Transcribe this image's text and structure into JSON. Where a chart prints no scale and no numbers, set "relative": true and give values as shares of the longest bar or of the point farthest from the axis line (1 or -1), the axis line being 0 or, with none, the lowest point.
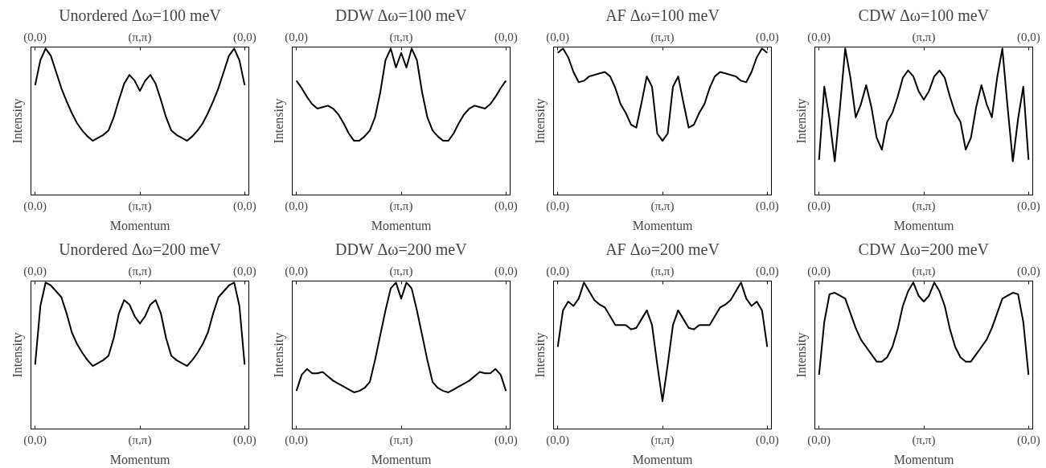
{
  "chart_data": [
    {
      "type": "line",
      "title": "Unordered Δω=100 meV",
      "xlabel": "Momentum",
      "ylabel": "Intensity",
      "relative": true,
      "grid": false,
      "marker": "none",
      "line_style": "solid",
      "categories": [
        "(0,0)",
        null,
        null,
        null,
        null,
        null,
        null,
        null,
        null,
        null,
        null,
        null,
        null,
        null,
        null,
        null,
        null,
        null,
        null,
        null,
        "(π,π)",
        null,
        null,
        null,
        null,
        null,
        null,
        null,
        null,
        null,
        null,
        null,
        null,
        null,
        null,
        null,
        null,
        null,
        null,
        null,
        "(0,0)"
      ],
      "series": [
        {
          "color": "#000000",
          "values": [
            0.75,
            0.92,
            1.0,
            0.95,
            0.84,
            0.73,
            0.64,
            0.56,
            0.49,
            0.44,
            0.4,
            0.37,
            0.39,
            0.41,
            0.44,
            0.53,
            0.65,
            0.76,
            0.82,
            0.78,
            0.71,
            0.78,
            0.82,
            0.76,
            0.65,
            0.53,
            0.44,
            0.41,
            0.39,
            0.37,
            0.4,
            0.44,
            0.49,
            0.56,
            0.64,
            0.73,
            0.84,
            0.95,
            1.0,
            0.92,
            0.75
          ]
        }
      ]
    },
    {
      "type": "line",
      "title": "DDW Δω=100 meV",
      "xlabel": "Momentum",
      "ylabel": "Intensity",
      "relative": true,
      "grid": false,
      "marker": "none",
      "line_style": "solid",
      "categories": [
        "(0,0)",
        null,
        null,
        null,
        null,
        null,
        null,
        null,
        null,
        null,
        null,
        null,
        null,
        null,
        null,
        null,
        null,
        null,
        null,
        null,
        "(π,π)",
        null,
        null,
        null,
        null,
        null,
        null,
        null,
        null,
        null,
        null,
        null,
        null,
        null,
        null,
        null,
        null,
        null,
        null,
        null,
        "(0,0)"
      ],
      "series": [
        {
          "color": "#000000",
          "values": [
            0.78,
            0.73,
            0.67,
            0.62,
            0.59,
            0.6,
            0.61,
            0.59,
            0.55,
            0.49,
            0.42,
            0.37,
            0.37,
            0.4,
            0.44,
            0.53,
            0.7,
            0.92,
            1.0,
            0.87,
            0.97,
            0.87,
            1.0,
            0.92,
            0.7,
            0.53,
            0.44,
            0.4,
            0.37,
            0.37,
            0.42,
            0.49,
            0.55,
            0.59,
            0.61,
            0.6,
            0.59,
            0.62,
            0.67,
            0.73,
            0.78
          ]
        }
      ]
    },
    {
      "type": "line",
      "title": "AF Δω=100 meV",
      "xlabel": "Momentum",
      "ylabel": "Intensity",
      "relative": true,
      "grid": false,
      "marker": "none",
      "line_style": "solid",
      "categories": [
        "(0,0)",
        null,
        null,
        null,
        null,
        null,
        null,
        null,
        null,
        null,
        null,
        null,
        null,
        null,
        null,
        null,
        null,
        null,
        null,
        null,
        "(π,π)",
        null,
        null,
        null,
        null,
        null,
        null,
        null,
        null,
        null,
        null,
        null,
        null,
        null,
        null,
        null,
        null,
        null,
        null,
        null,
        "(0,0)"
      ],
      "series": [
        {
          "color": "#000000",
          "values": [
            0.97,
            1.0,
            0.94,
            0.84,
            0.77,
            0.78,
            0.81,
            0.82,
            0.83,
            0.84,
            0.81,
            0.73,
            0.62,
            0.56,
            0.48,
            0.46,
            0.63,
            0.81,
            0.74,
            0.42,
            0.37,
            0.42,
            0.74,
            0.81,
            0.63,
            0.46,
            0.48,
            0.56,
            0.62,
            0.73,
            0.81,
            0.84,
            0.83,
            0.82,
            0.81,
            0.78,
            0.77,
            0.84,
            0.94,
            1.0,
            0.97
          ]
        }
      ]
    },
    {
      "type": "line",
      "title": "CDW Δω=100 meV",
      "xlabel": "Momentum",
      "ylabel": "Intensity",
      "relative": true,
      "grid": false,
      "marker": "none",
      "line_style": "solid",
      "categories": [
        "(0,0)",
        null,
        null,
        null,
        null,
        null,
        null,
        null,
        null,
        null,
        null,
        null,
        null,
        null,
        null,
        null,
        null,
        null,
        null,
        null,
        "(π,π)",
        null,
        null,
        null,
        null,
        null,
        null,
        null,
        null,
        null,
        null,
        null,
        null,
        null,
        null,
        null,
        null,
        null,
        null,
        null,
        "(0,0)"
      ],
      "series": [
        {
          "color": "#000000",
          "values": [
            0.24,
            0.74,
            0.52,
            0.23,
            0.6,
            1.0,
            0.8,
            0.53,
            0.62,
            0.75,
            0.6,
            0.39,
            0.31,
            0.5,
            0.56,
            0.67,
            0.8,
            0.85,
            0.81,
            0.71,
            0.65,
            0.71,
            0.81,
            0.85,
            0.8,
            0.67,
            0.56,
            0.5,
            0.31,
            0.39,
            0.6,
            0.75,
            0.62,
            0.53,
            0.8,
            1.0,
            0.6,
            0.23,
            0.52,
            0.74,
            0.24
          ]
        }
      ]
    },
    {
      "type": "line",
      "title": "Unordered Δω=200 meV",
      "xlabel": "Momentum",
      "ylabel": "Intensity",
      "relative": true,
      "grid": false,
      "marker": "none",
      "line_style": "solid",
      "categories": [
        "(0,0)",
        null,
        null,
        null,
        null,
        null,
        null,
        null,
        null,
        null,
        null,
        null,
        null,
        null,
        null,
        null,
        null,
        null,
        null,
        null,
        "(π,π)",
        null,
        null,
        null,
        null,
        null,
        null,
        null,
        null,
        null,
        null,
        null,
        null,
        null,
        null,
        null,
        null,
        null,
        null,
        null,
        "(0,0)"
      ],
      "series": [
        {
          "color": "#000000",
          "values": [
            0.44,
            0.84,
            1.0,
            0.98,
            0.94,
            0.9,
            0.79,
            0.66,
            0.58,
            0.52,
            0.47,
            0.43,
            0.45,
            0.47,
            0.5,
            0.62,
            0.79,
            0.88,
            0.85,
            0.77,
            0.72,
            0.77,
            0.85,
            0.88,
            0.79,
            0.62,
            0.5,
            0.47,
            0.45,
            0.43,
            0.47,
            0.52,
            0.58,
            0.66,
            0.79,
            0.9,
            0.94,
            0.98,
            1.0,
            0.84,
            0.44
          ]
        }
      ]
    },
    {
      "type": "line",
      "title": "DDW Δω=200 meV",
      "xlabel": "Momentum",
      "ylabel": "Intensity",
      "relative": true,
      "grid": false,
      "marker": "none",
      "line_style": "solid",
      "categories": [
        "(0,0)",
        null,
        null,
        null,
        null,
        null,
        null,
        null,
        null,
        null,
        null,
        null,
        null,
        null,
        null,
        null,
        null,
        null,
        null,
        null,
        "(π,π)",
        null,
        null,
        null,
        null,
        null,
        null,
        null,
        null,
        null,
        null,
        null,
        null,
        null,
        null,
        null,
        null,
        null,
        null,
        null,
        "(0,0)"
      ],
      "series": [
        {
          "color": "#000000",
          "values": [
            0.26,
            0.37,
            0.41,
            0.38,
            0.38,
            0.39,
            0.36,
            0.33,
            0.31,
            0.29,
            0.27,
            0.25,
            0.26,
            0.28,
            0.32,
            0.47,
            0.64,
            0.81,
            0.96,
            1.0,
            0.89,
            1.0,
            0.96,
            0.81,
            0.64,
            0.47,
            0.32,
            0.28,
            0.26,
            0.25,
            0.27,
            0.29,
            0.31,
            0.33,
            0.36,
            0.39,
            0.38,
            0.38,
            0.41,
            0.37,
            0.26
          ]
        }
      ]
    },
    {
      "type": "line",
      "title": "AF Δω=200 meV",
      "xlabel": "Momentum",
      "ylabel": "Intensity",
      "relative": true,
      "grid": false,
      "marker": "none",
      "line_style": "solid",
      "categories": [
        "(0,0)",
        null,
        null,
        null,
        null,
        null,
        null,
        null,
        null,
        null,
        null,
        null,
        null,
        null,
        null,
        null,
        null,
        null,
        null,
        null,
        "(π,π)",
        null,
        null,
        null,
        null,
        null,
        null,
        null,
        null,
        null,
        null,
        null,
        null,
        null,
        null,
        null,
        null,
        null,
        null,
        null,
        "(0,0)"
      ],
      "series": [
        {
          "color": "#000000",
          "values": [
            0.56,
            0.81,
            0.87,
            0.84,
            0.89,
            1.0,
            0.94,
            0.88,
            0.85,
            0.83,
            0.77,
            0.71,
            0.71,
            0.71,
            0.68,
            0.69,
            0.75,
            0.81,
            0.71,
            0.44,
            0.19,
            0.44,
            0.71,
            0.81,
            0.75,
            0.69,
            0.68,
            0.71,
            0.71,
            0.71,
            0.77,
            0.83,
            0.85,
            0.88,
            0.94,
            1.0,
            0.89,
            0.84,
            0.87,
            0.81,
            0.56
          ]
        }
      ]
    },
    {
      "type": "line",
      "title": "CDW Δω=200 meV",
      "xlabel": "Momentum",
      "ylabel": "Intensity",
      "relative": true,
      "grid": false,
      "marker": "none",
      "line_style": "solid",
      "categories": [
        "(0,0)",
        null,
        null,
        null,
        null,
        null,
        null,
        null,
        null,
        null,
        null,
        null,
        null,
        null,
        null,
        null,
        null,
        null,
        null,
        null,
        "(π,π)",
        null,
        null,
        null,
        null,
        null,
        null,
        null,
        null,
        null,
        null,
        null,
        null,
        null,
        null,
        null,
        null,
        null,
        null,
        null,
        "(0,0)"
      ],
      "series": [
        {
          "color": "#000000",
          "values": [
            0.37,
            0.73,
            0.92,
            0.93,
            0.91,
            0.89,
            0.79,
            0.69,
            0.61,
            0.56,
            0.51,
            0.46,
            0.46,
            0.49,
            0.56,
            0.68,
            0.84,
            0.94,
            1.0,
            0.91,
            0.87,
            0.91,
            1.0,
            0.94,
            0.84,
            0.68,
            0.56,
            0.49,
            0.46,
            0.46,
            0.51,
            0.56,
            0.61,
            0.69,
            0.79,
            0.89,
            0.91,
            0.93,
            0.92,
            0.73,
            0.37
          ]
        }
      ]
    }
  ]
}
